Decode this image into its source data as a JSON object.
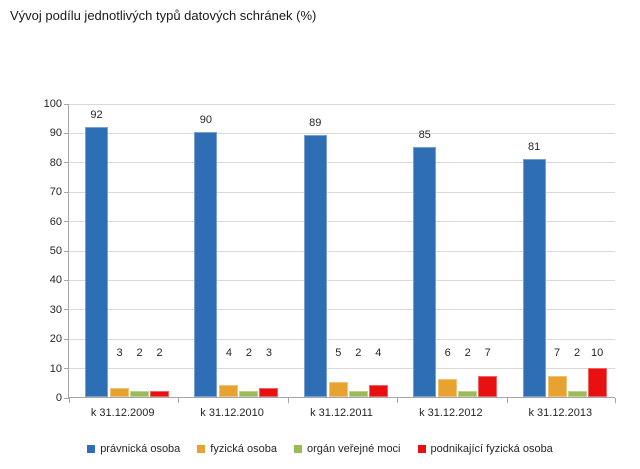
{
  "chart_data": {
    "type": "bar",
    "title": "Vývoj podílu jednotlivých typů datových schránek (%)",
    "categories": [
      "k 31.12.2009",
      "k 31.12.2010",
      "k 31.12.2011",
      "k 31.12.2012",
      "k 31.12.2013"
    ],
    "series": [
      {
        "name": "právnická osoba",
        "color": "#2e6eb5",
        "values": [
          92,
          90,
          89,
          85,
          81
        ]
      },
      {
        "name": "fyzická osoba",
        "color": "#e8a230",
        "values": [
          3,
          4,
          5,
          6,
          7
        ]
      },
      {
        "name": "orgán veřejné moci",
        "color": "#9bbb59",
        "values": [
          2,
          2,
          2,
          2,
          2
        ]
      },
      {
        "name": "podnikající fyzická osoba",
        "color": "#e81010",
        "values": [
          2,
          3,
          4,
          7,
          10
        ]
      }
    ],
    "ylim": [
      0,
      100
    ],
    "ytick_step": 10,
    "ytick_labels": [
      "0",
      "10",
      "20",
      "30",
      "40",
      "50",
      "60",
      "70",
      "80",
      "90",
      "100"
    ],
    "grid": true,
    "value_labels": true,
    "legend_position": "bottom"
  },
  "style": {
    "axis_color": "#a6a6a6",
    "gridline_color": "#d9d9d9",
    "text_color": "#262626",
    "background": "#ffffff"
  }
}
